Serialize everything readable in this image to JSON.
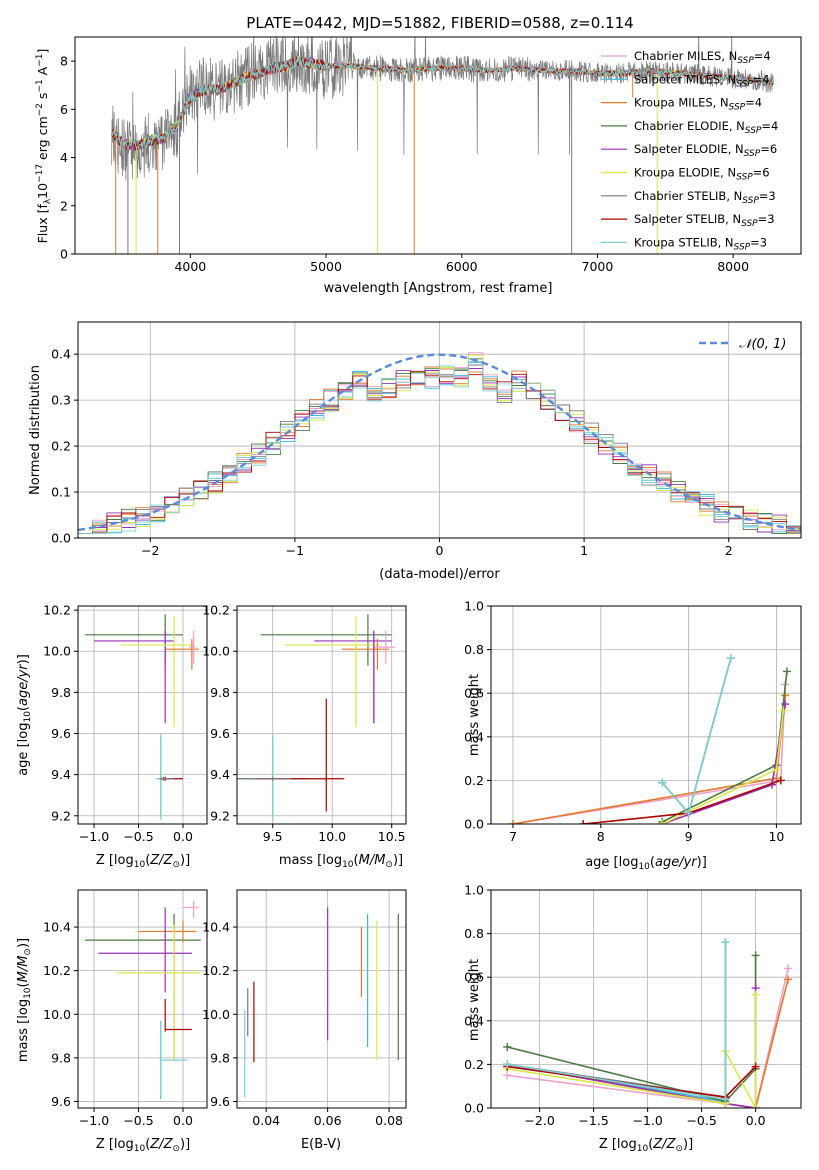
{
  "colors": {
    "Chabrier MILES": "#f0a0c8",
    "Salpeter MILES": "#3fb8d6",
    "Kroupa MILES": "#e07a2a",
    "Chabrier ELODIE": "#4a7a40",
    "Salpeter ELODIE": "#9a30b8",
    "Kroupa ELODIE": "#d8e848",
    "Chabrier STELIB": "#7a7a7a",
    "Salpeter STELIB": "#aa0000",
    "Kroupa STELIB": "#80d0d0",
    "normal_curve": "#5a8ad8",
    "grid": "#b0b0b0"
  },
  "chart_data": [
    {
      "type": "line",
      "title": "PLATE=0442, MJD=51882, FIBERID=0588, z=0.114",
      "xlabel": "wavelength [Angstrom, rest frame]",
      "ylabel": "Flux [f_λ 10^-17 erg cm^-2 s^-1 A^-1]",
      "xlim": [
        3150,
        8500
      ],
      "ylim": [
        0,
        9
      ],
      "xticks": [
        "4000",
        "5000",
        "6000",
        "7000",
        "8000"
      ],
      "yticks": [
        "0",
        "2",
        "4",
        "6",
        "8"
      ],
      "legend_position": "right",
      "legend": [
        {
          "model": "Chabrier MILES",
          "n": "4"
        },
        {
          "model": "Salpeter MILES",
          "n": "4"
        },
        {
          "model": "Kroupa MILES",
          "n": "4"
        },
        {
          "model": "Chabrier ELODIE",
          "n": "4"
        },
        {
          "model": "Salpeter ELODIE",
          "n": "6"
        },
        {
          "model": "Kroupa ELODIE",
          "n": "6"
        },
        {
          "model": "Chabrier STELIB",
          "n": "3"
        },
        {
          "model": "Salpeter STELIB",
          "n": "3"
        },
        {
          "model": "Kroupa STELIB",
          "n": "3"
        }
      ],
      "data_spectrum": {
        "x": [
          3420,
          3500,
          3600,
          3700,
          3800,
          3900,
          4000,
          4100,
          4200,
          4300,
          4400,
          4500,
          4600,
          4700,
          4800,
          4900,
          5000,
          5200,
          5400,
          5600,
          5800,
          6000,
          6200,
          6400,
          6600,
          6800,
          7000,
          7200,
          7400,
          7600,
          7800,
          8000,
          8200,
          8300
        ],
        "y": [
          5.0,
          4.3,
          4.2,
          4.6,
          4.7,
          5.2,
          6.7,
          6.9,
          6.8,
          7.0,
          7.3,
          7.6,
          7.8,
          7.9,
          8.0,
          7.9,
          7.7,
          7.8,
          7.7,
          7.6,
          7.7,
          7.7,
          7.6,
          7.7,
          7.6,
          7.6,
          7.5,
          7.5,
          7.6,
          7.5,
          7.4,
          7.3,
          7.2,
          7.1
        ]
      },
      "model_spectrum": {
        "x": [
          3420,
          3500,
          3600,
          3700,
          3800,
          3900,
          4000,
          4100,
          4200,
          4300,
          4400,
          4500,
          4600,
          4700,
          4800,
          4900,
          5000,
          5200,
          5400,
          5600,
          5800,
          6000,
          6200,
          6400,
          6600,
          6800,
          7000,
          7200,
          7400,
          7600,
          7800,
          8000,
          8200,
          8300
        ],
        "y": [
          5.1,
          4.6,
          4.5,
          4.7,
          4.8,
          5.3,
          6.5,
          6.8,
          6.8,
          7.0,
          7.3,
          7.5,
          7.7,
          7.8,
          8.0,
          7.9,
          7.8,
          7.8,
          7.7,
          7.6,
          7.7,
          7.7,
          7.6,
          7.7,
          7.6,
          7.6,
          7.5,
          7.5,
          7.6,
          7.5,
          7.4,
          7.3,
          7.2,
          7.1
        ]
      }
    },
    {
      "type": "line",
      "xlabel": "(data-model)/error",
      "ylabel": "Normed distribution",
      "xlim": [
        -2.5,
        2.5
      ],
      "ylim": [
        0,
        0.47
      ],
      "xticks": [
        "−2",
        "−1",
        "0",
        "1",
        "2"
      ],
      "yticks": [
        "0.0",
        "0.1",
        "0.2",
        "0.3",
        "0.4"
      ],
      "legend": "𝒩(0, 1)",
      "legend_position": "top-right"
    },
    {
      "type": "scatter",
      "xlabel": "Z [log10(Z/Z⊙)]",
      "ylabel": "age [log10(age/yr)]",
      "xlim": [
        -1.18,
        0.27
      ],
      "ylim": [
        9.16,
        10.22
      ],
      "xticks": [
        "−1.0",
        "−0.5",
        "0.0"
      ],
      "yticks": [
        "9.2",
        "9.4",
        "9.6",
        "9.8",
        "10.0",
        "10.2"
      ]
    },
    {
      "type": "scatter",
      "xlabel": "mass [log10(M/M⊙)]",
      "ylabel": "",
      "xlim": [
        9.2,
        10.62
      ],
      "ylim": [
        9.16,
        10.22
      ],
      "xticks": [
        "9.5",
        "10.0",
        "10.5"
      ],
      "yticks": [
        "9.2",
        "9.4",
        "9.6",
        "9.8",
        "10.0",
        "10.2"
      ]
    },
    {
      "type": "line",
      "xlabel": "age [log10(age/yr)]",
      "ylabel": "mass weight",
      "xlim": [
        6.75,
        10.28
      ],
      "ylim": [
        0,
        1
      ],
      "xticks": [
        "7",
        "8",
        "9",
        "10"
      ],
      "yticks": [
        "0.0",
        "0.2",
        "0.4",
        "0.6",
        "0.8",
        "1.0"
      ]
    },
    {
      "type": "scatter",
      "xlabel": "Z [log10(Z/Z⊙)]",
      "ylabel": "mass [log10(M/M⊙)]",
      "xlim": [
        -1.18,
        0.27
      ],
      "ylim": [
        9.57,
        10.57
      ],
      "xticks": [
        "−1.0",
        "−0.5",
        "0.0"
      ],
      "yticks": [
        "9.6",
        "9.8",
        "10.0",
        "10.2",
        "10.4"
      ]
    },
    {
      "type": "scatter",
      "xlabel": "E(B-V)",
      "ylabel": "",
      "xlim": [
        0.0305,
        0.0855
      ],
      "ylim": [
        9.57,
        10.57
      ],
      "xticks": [
        "0.04",
        "0.06",
        "0.08"
      ],
      "yticks": [
        "9.6",
        "9.8",
        "10.0",
        "10.2",
        "10.4"
      ]
    },
    {
      "type": "line",
      "xlabel": "Z [log10(Z/Z⊙)]",
      "ylabel": "mass weight",
      "xlim": [
        -2.45,
        0.42
      ],
      "ylim": [
        0,
        1
      ],
      "xticks": [
        "−2.0",
        "−1.5",
        "−1.0",
        "−0.5",
        "0.0"
      ],
      "yticks": [
        "0.0",
        "0.2",
        "0.4",
        "0.6",
        "0.8",
        "1.0"
      ]
    }
  ]
}
